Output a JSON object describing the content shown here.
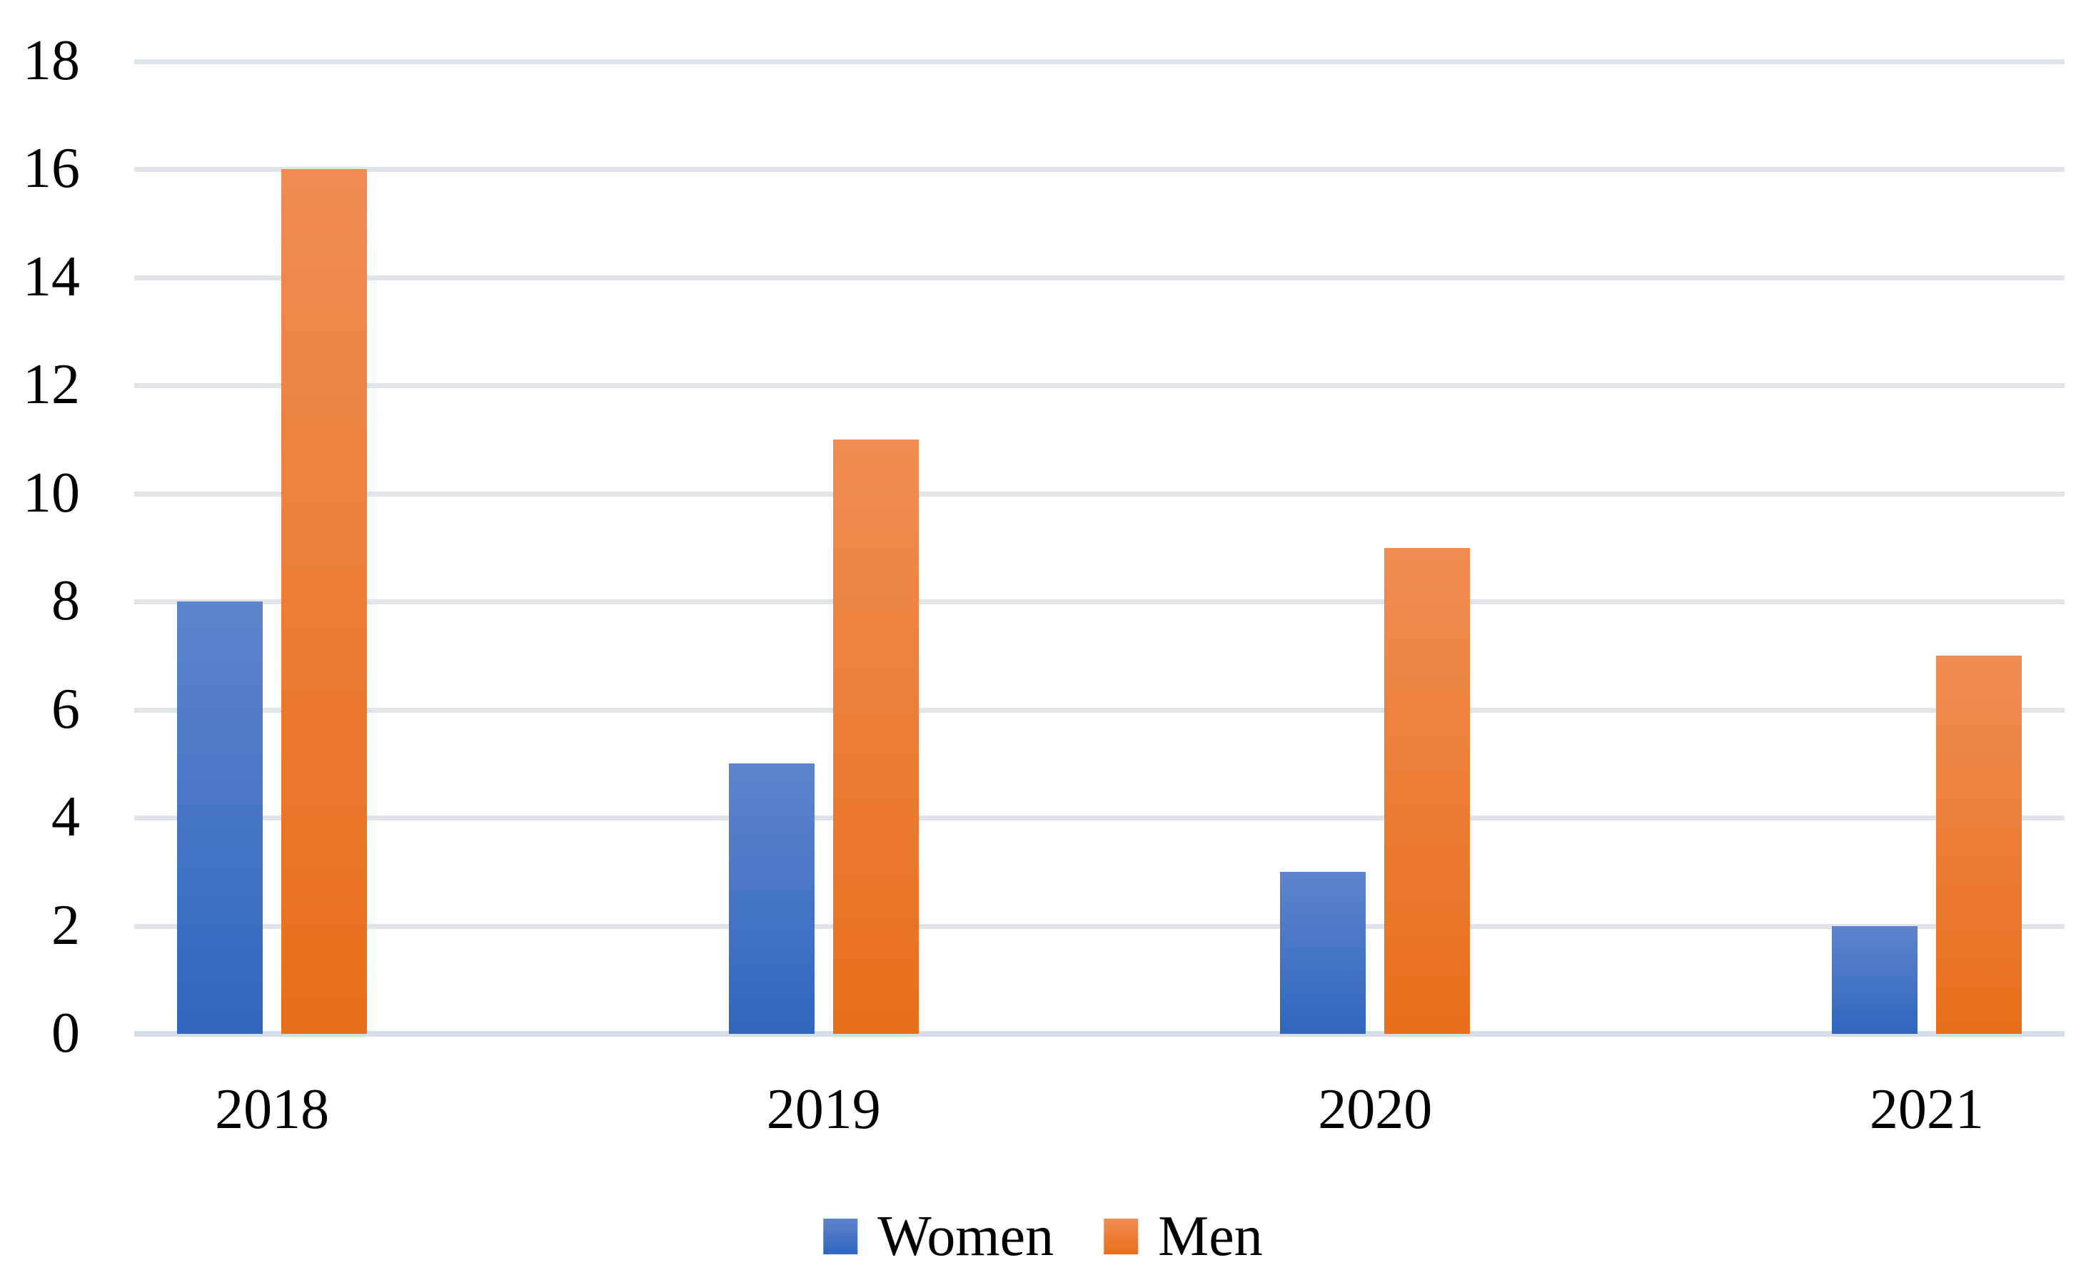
{
  "chart_data": {
    "type": "bar",
    "title": "",
    "xlabel": "",
    "ylabel": "",
    "categories": [
      "2018",
      "2019",
      "2020",
      "2021"
    ],
    "series": [
      {
        "name": "Women",
        "values": [
          8,
          5,
          3,
          2
        ],
        "color_top": "#5e84cd",
        "color_bottom": "#3066be"
      },
      {
        "name": "Men",
        "values": [
          16,
          11,
          9,
          7
        ],
        "color_top": "#f08c52",
        "color_bottom": "#e86f1b"
      }
    ],
    "ylim": [
      0,
      18
    ],
    "y_ticks": [
      0,
      2,
      4,
      6,
      8,
      10,
      12,
      14,
      16,
      18
    ],
    "grid": "horizontal",
    "grid_color": "#dfe3ea",
    "axis_line_color": "#d7dde6",
    "text_color": "#000000",
    "background": "#ffffff",
    "legend_position": "bottom",
    "legend": [
      "Women",
      "Men"
    ]
  }
}
